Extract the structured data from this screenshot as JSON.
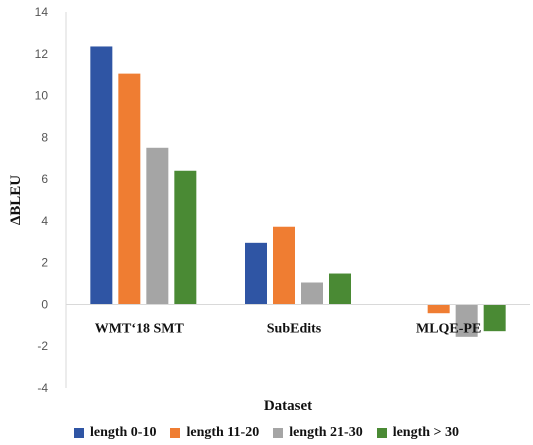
{
  "chart_data": {
    "type": "bar",
    "categories": [
      "WMT‘18 SMT",
      "SubEdits",
      "MLQE-PE"
    ],
    "series": [
      {
        "name": "length 0-10",
        "color": "#2f55a4",
        "values": [
          12.35,
          2.95,
          0.0
        ]
      },
      {
        "name": "length 11-20",
        "color": "#ef7d32",
        "values": [
          11.05,
          3.72,
          -0.42
        ]
      },
      {
        "name": "length 21-30",
        "color": "#a5a5a5",
        "values": [
          7.5,
          1.05,
          -1.55
        ]
      },
      {
        "name": "length > 30",
        "color": "#4a8a34",
        "values": [
          6.4,
          1.48,
          -1.28
        ]
      }
    ],
    "xlabel": "Dataset",
    "ylabel": "ΔBLEU",
    "ylim": [
      -4,
      14
    ],
    "yticks": [
      "-4",
      "-2",
      "0",
      "2",
      "4",
      "6",
      "8",
      "10",
      "12",
      "14"
    ],
    "grid": false,
    "legend": "bottom"
  }
}
